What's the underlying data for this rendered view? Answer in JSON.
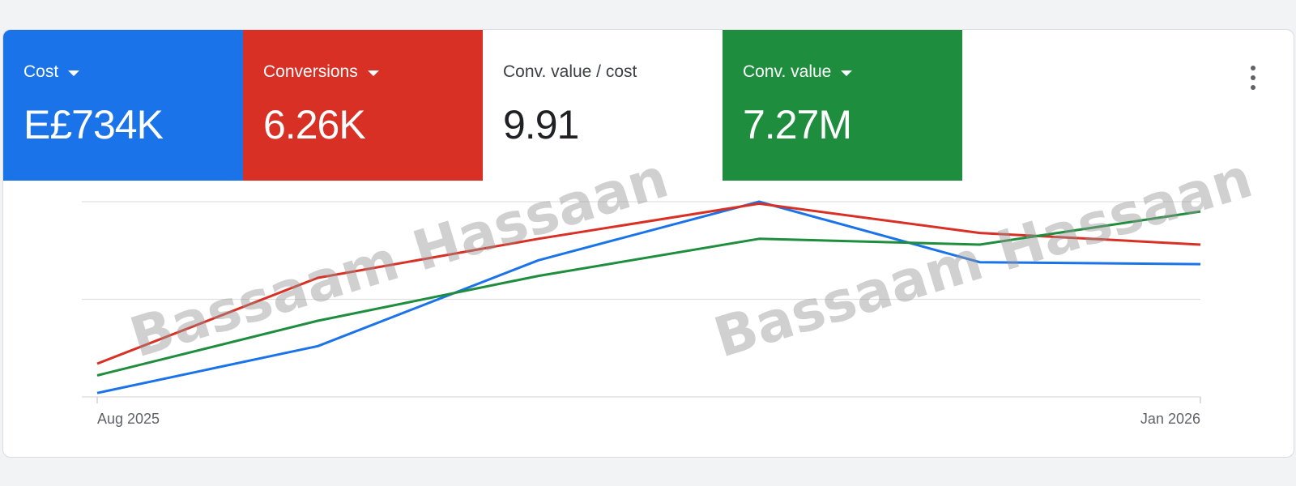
{
  "metrics": [
    {
      "label": "Cost",
      "value": "E£734K",
      "has_dropdown": true
    },
    {
      "label": "Conversions",
      "value": "6.26K",
      "has_dropdown": true
    },
    {
      "label": "Conv. value / cost",
      "value": "9.91",
      "has_dropdown": false
    },
    {
      "label": "Conv. value",
      "value": "7.27M",
      "has_dropdown": true
    }
  ],
  "colors": {
    "cost": "#1a73e8",
    "conversions": "#d93025",
    "conv_value": "#1e8e3e",
    "grid": "#e0e0e0"
  },
  "menu_icon": "more-vert-icon",
  "watermark_text": "Bassaam Hassaan",
  "chart_data": {
    "type": "line",
    "x_tick_labels": [
      "Aug 2025",
      "Jan 2026"
    ],
    "x": [
      0,
      1,
      2,
      3,
      4,
      5
    ],
    "grid": true,
    "series": [
      {
        "key": "cost",
        "values": [
          2,
          26,
          70,
          100,
          69,
          68
        ]
      },
      {
        "key": "conversions",
        "values": [
          17,
          61,
          81,
          99,
          84,
          78
        ]
      },
      {
        "key": "conv_value",
        "values": [
          11,
          39,
          62,
          81,
          78,
          95
        ]
      }
    ]
  }
}
